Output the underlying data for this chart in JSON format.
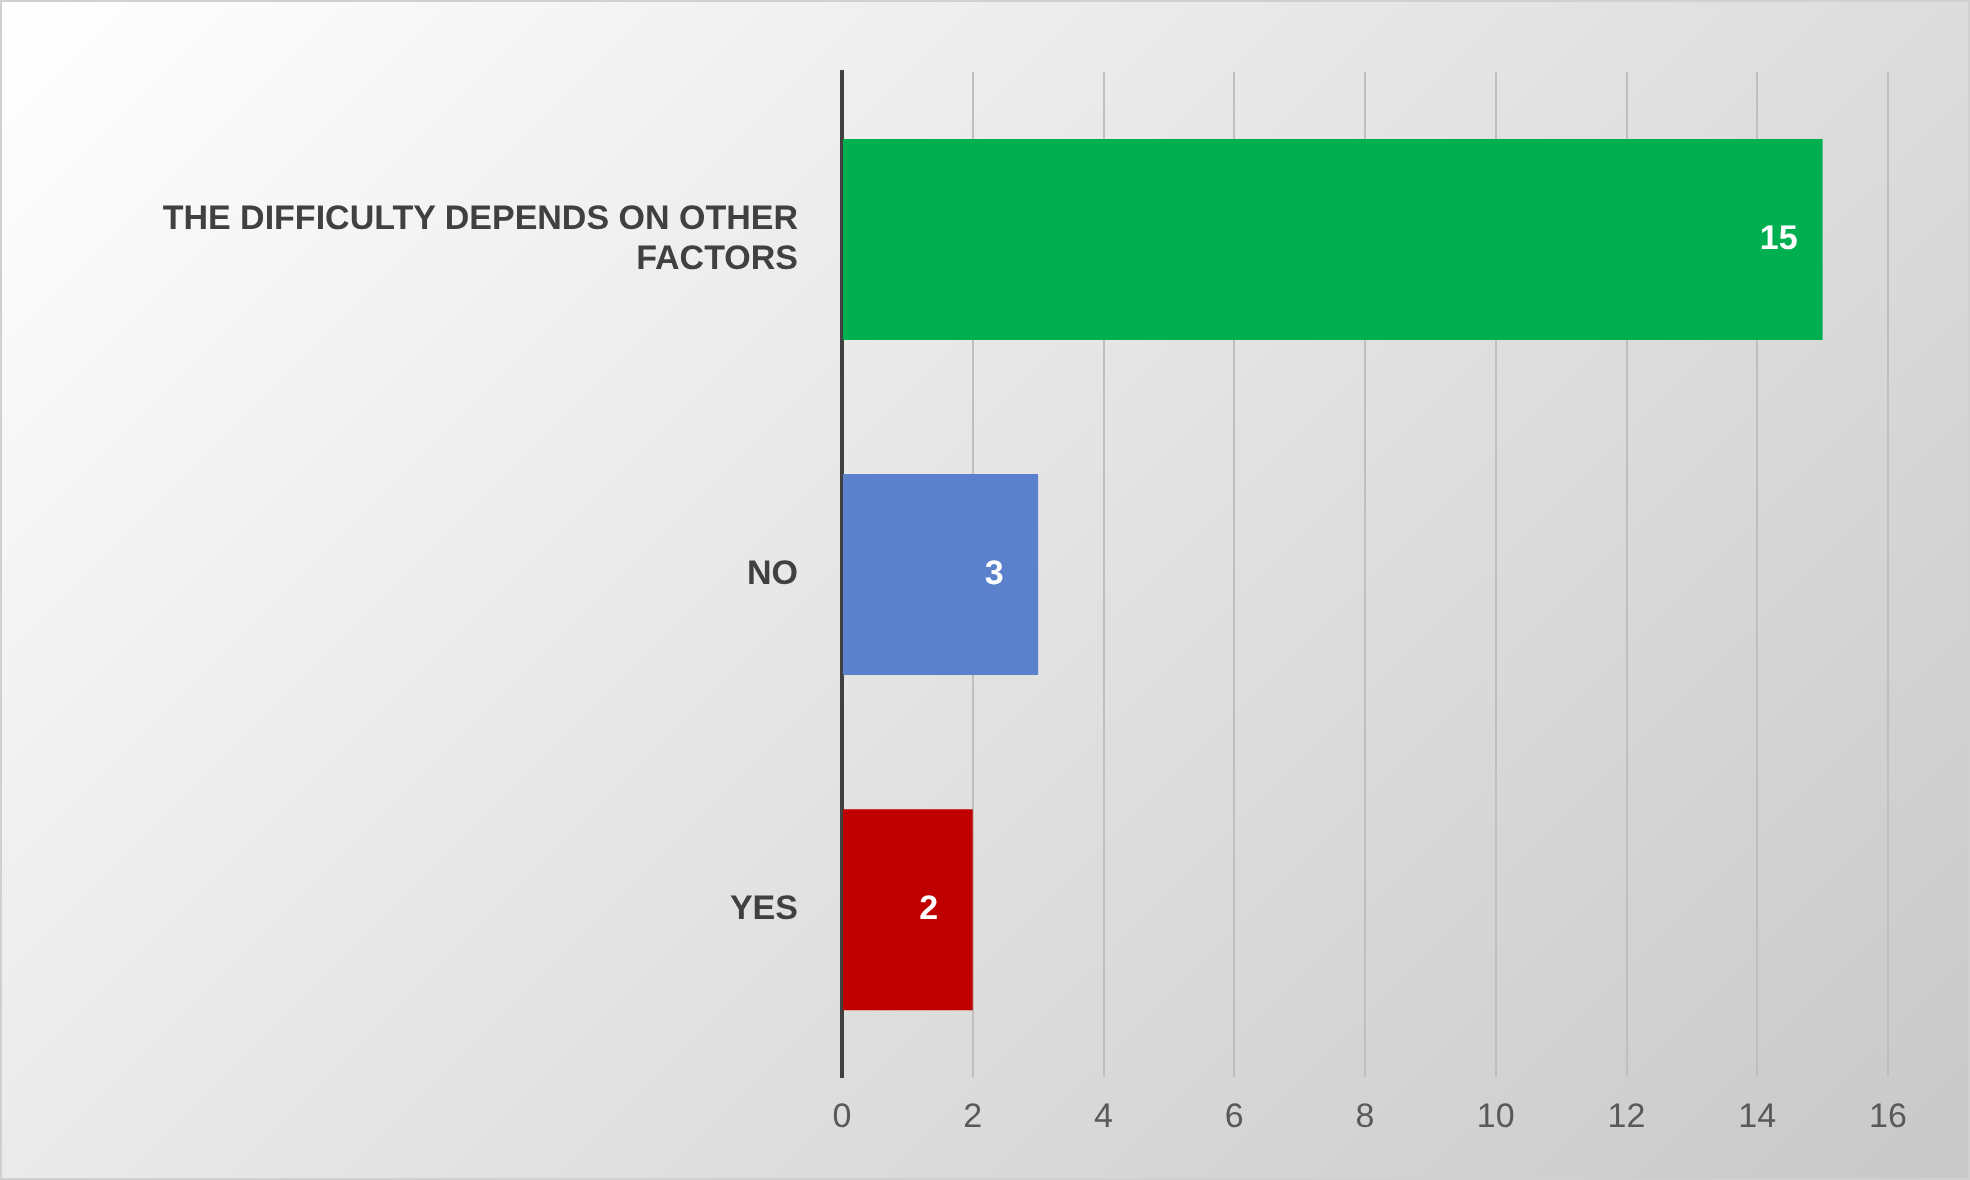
{
  "chart_data": {
    "type": "bar",
    "orientation": "horizontal",
    "categories": [
      "THE DIFFICULTY DEPENDS ON OTHER FACTORS",
      "NO",
      "YES"
    ],
    "values": [
      15,
      3,
      2
    ],
    "colors": [
      "#00b050",
      "#5b80cc",
      "#c00000"
    ],
    "xlim": [
      0,
      16
    ],
    "xticks": [
      0,
      2,
      4,
      6,
      8,
      10,
      12,
      14,
      16
    ],
    "grid": "x",
    "data_labels": true,
    "legend": false
  }
}
